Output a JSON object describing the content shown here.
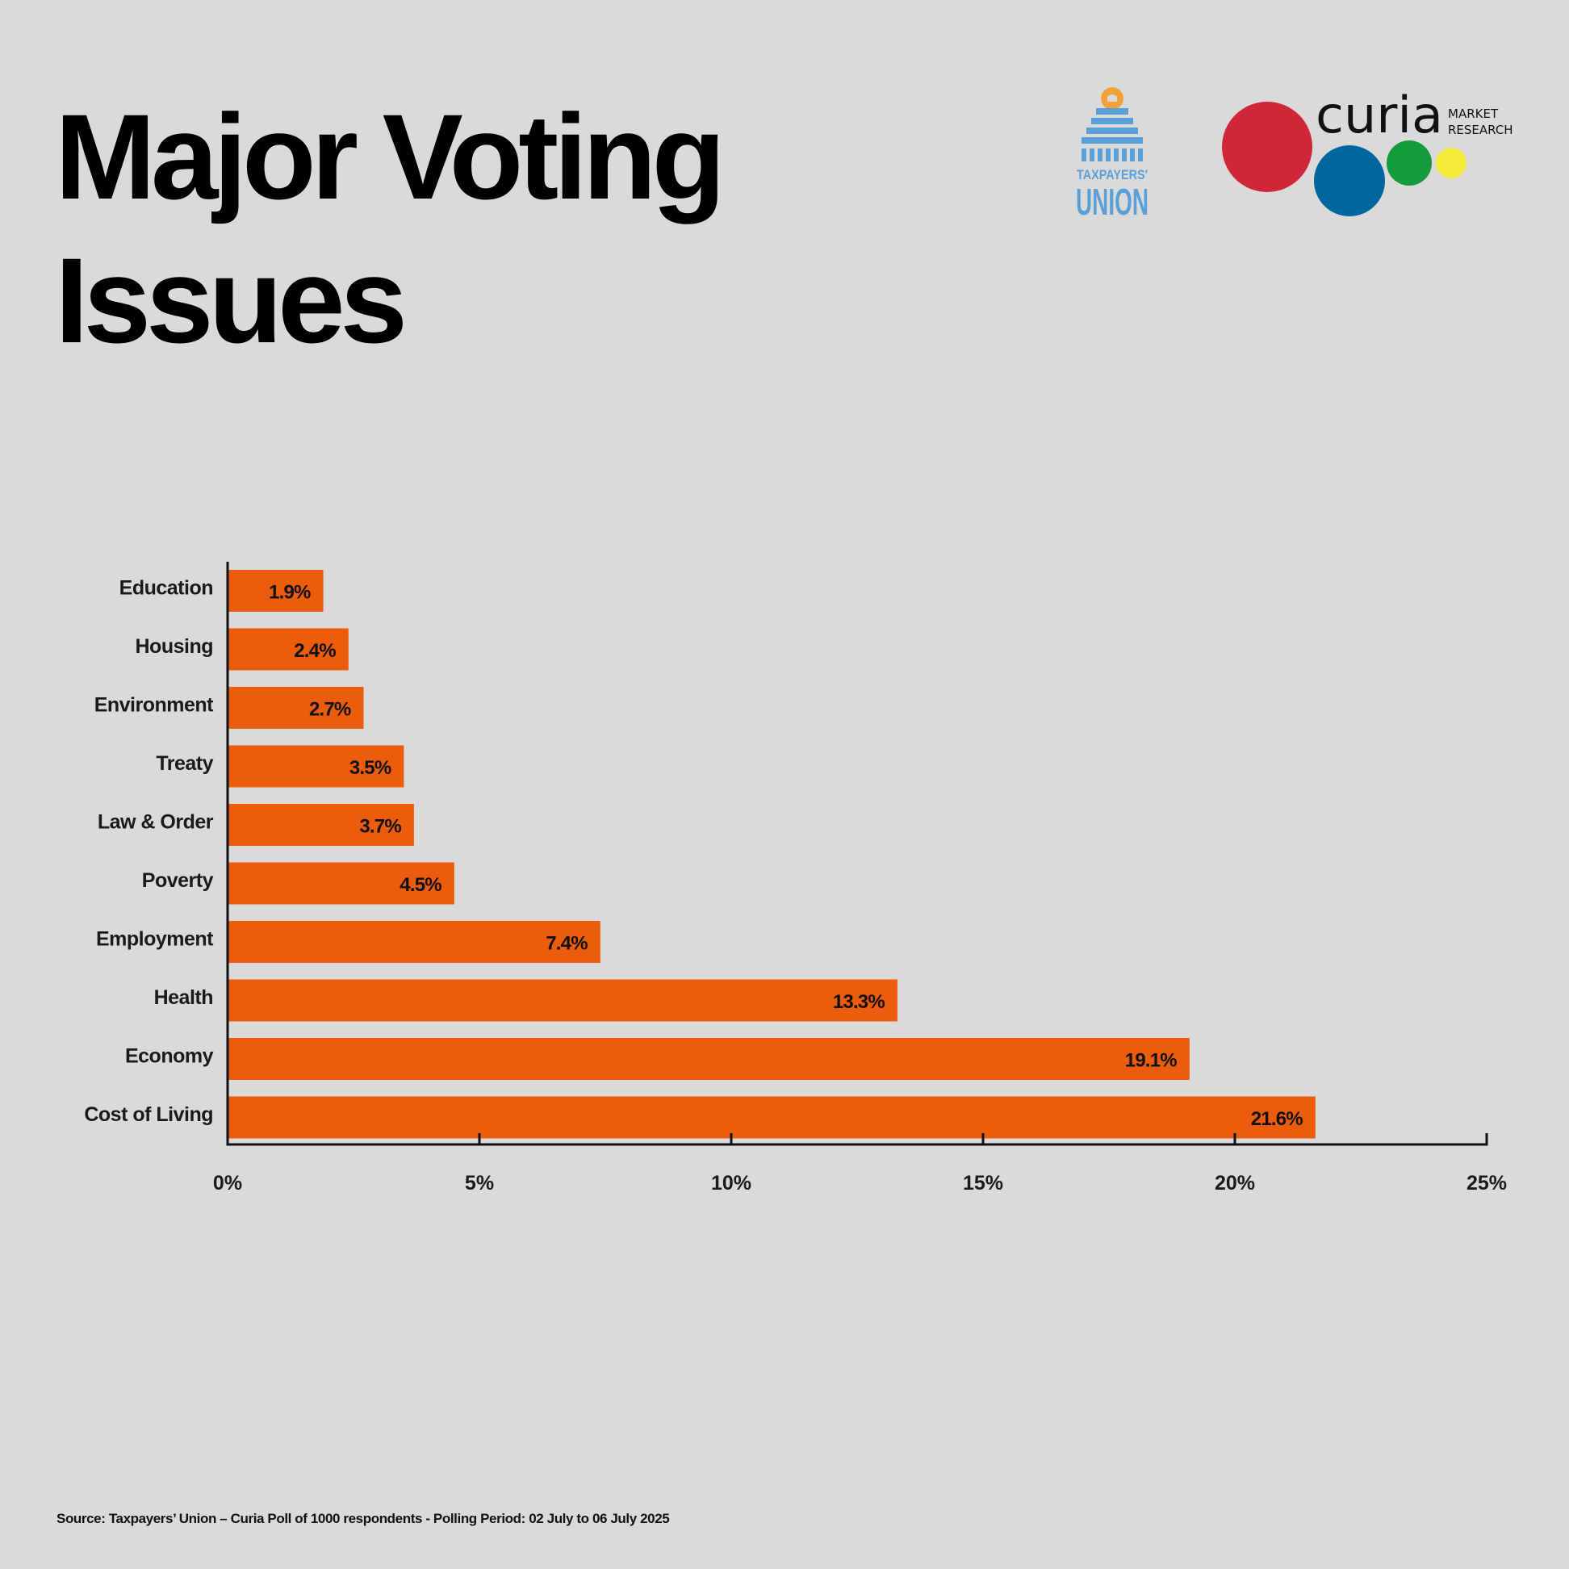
{
  "title": "Major Voting Issues",
  "logos": {
    "taxpayers_union": {
      "line1": "TAXPAYERS'",
      "line2": "UNION",
      "color": "#5b9fd8",
      "sun_color": "#f0a33a"
    },
    "curia": {
      "wordmark": "curia",
      "tag1": "MARKET",
      "tag2": "RESEARCH",
      "dot_colors": [
        "#d0263a",
        "#00689f",
        "#149b3c",
        "#f7ea3a"
      ]
    }
  },
  "chart_data": {
    "type": "bar",
    "orientation": "horizontal",
    "categories": [
      "Education",
      "Housing",
      "Environment",
      "Treaty",
      "Law & Order",
      "Poverty",
      "Employment",
      "Health",
      "Economy",
      "Cost of Living"
    ],
    "values": [
      1.9,
      2.4,
      2.7,
      3.5,
      3.7,
      4.5,
      7.4,
      13.3,
      19.1,
      21.6
    ],
    "data_labels": [
      "1.9%",
      "2.4%",
      "2.7%",
      "3.5%",
      "3.7%",
      "4.5%",
      "7.4%",
      "13.3%",
      "19.1%",
      "21.6%"
    ],
    "x_ticks": [
      0,
      5,
      10,
      15,
      20,
      25
    ],
    "x_tick_labels": [
      "0%",
      "5%",
      "10%",
      "15%",
      "20%",
      "25%"
    ],
    "xlim": [
      0,
      25
    ],
    "bar_color": "#eb5c0c",
    "grid": false,
    "legend": "none"
  },
  "source": "Source: Taxpayers’ Union – Curia Poll of 1000 respondents -  Polling Period: 02 July to 06 July 2025"
}
